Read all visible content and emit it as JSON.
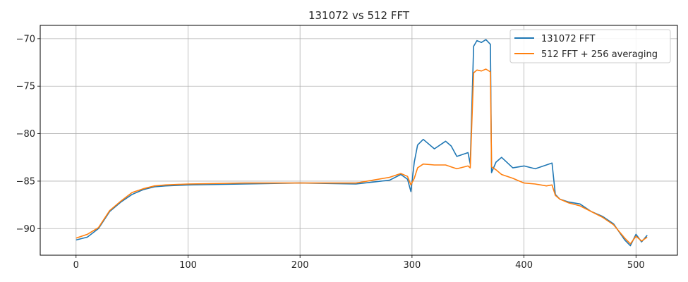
{
  "chart_data": {
    "type": "line",
    "title": "131072 vs 512 FFT",
    "xlabel": "",
    "ylabel": "",
    "xlim": [
      -32,
      537
    ],
    "ylim": [
      -92.8,
      -68.6
    ],
    "xticks": [
      0,
      100,
      200,
      300,
      400,
      500
    ],
    "yticks": [
      -90,
      -85,
      -80,
      -75,
      -70
    ],
    "grid": true,
    "legend": "top-right",
    "series": [
      {
        "name": "131072 FFT",
        "color": "#1f77b4",
        "x": [
          0,
          10,
          20,
          30,
          40,
          50,
          60,
          70,
          80,
          100,
          150,
          200,
          250,
          280,
          290,
          296,
          299,
          302,
          305,
          310,
          320,
          330,
          335,
          340,
          350,
          352,
          355,
          358,
          362,
          366,
          370,
          371,
          375,
          380,
          390,
          400,
          410,
          420,
          425,
          428,
          432,
          440,
          450,
          460,
          470,
          480,
          490,
          495,
          500,
          505,
          510
        ],
        "y": [
          -91.2,
          -90.9,
          -90.0,
          -88.2,
          -87.2,
          -86.4,
          -85.9,
          -85.6,
          -85.5,
          -85.4,
          -85.3,
          -85.2,
          -85.3,
          -84.9,
          -84.3,
          -84.8,
          -86.1,
          -83.0,
          -81.2,
          -80.6,
          -81.6,
          -80.8,
          -81.3,
          -82.4,
          -82.0,
          -83.2,
          -70.8,
          -70.2,
          -70.4,
          -70.1,
          -70.6,
          -84.1,
          -83.0,
          -82.5,
          -83.6,
          -83.4,
          -83.7,
          -83.3,
          -83.1,
          -86.4,
          -86.9,
          -87.2,
          -87.4,
          -88.2,
          -88.7,
          -89.5,
          -91.2,
          -91.8,
          -90.6,
          -91.4,
          -90.7
        ]
      },
      {
        "name": "512 FFT + 256 averaging",
        "color": "#ff7f0e",
        "x": [
          0,
          10,
          20,
          30,
          40,
          50,
          60,
          70,
          80,
          100,
          150,
          200,
          250,
          280,
          290,
          296,
          299,
          302,
          305,
          310,
          320,
          330,
          335,
          340,
          350,
          352,
          355,
          358,
          362,
          366,
          370,
          371,
          375,
          380,
          390,
          400,
          410,
          420,
          425,
          428,
          432,
          440,
          450,
          460,
          470,
          480,
          490,
          495,
          500,
          505,
          510
        ],
        "y": [
          -91.0,
          -90.6,
          -89.9,
          -88.1,
          -87.1,
          -86.2,
          -85.8,
          -85.5,
          -85.4,
          -85.3,
          -85.2,
          -85.2,
          -85.2,
          -84.6,
          -84.2,
          -84.5,
          -85.4,
          -84.7,
          -83.6,
          -83.2,
          -83.3,
          -83.3,
          -83.5,
          -83.7,
          -83.4,
          -83.6,
          -73.6,
          -73.3,
          -73.4,
          -73.2,
          -73.5,
          -83.5,
          -83.8,
          -84.3,
          -84.7,
          -85.2,
          -85.3,
          -85.5,
          -85.4,
          -86.5,
          -86.9,
          -87.3,
          -87.6,
          -88.2,
          -88.8,
          -89.6,
          -91.0,
          -91.6,
          -90.8,
          -91.3,
          -90.9
        ]
      }
    ]
  }
}
